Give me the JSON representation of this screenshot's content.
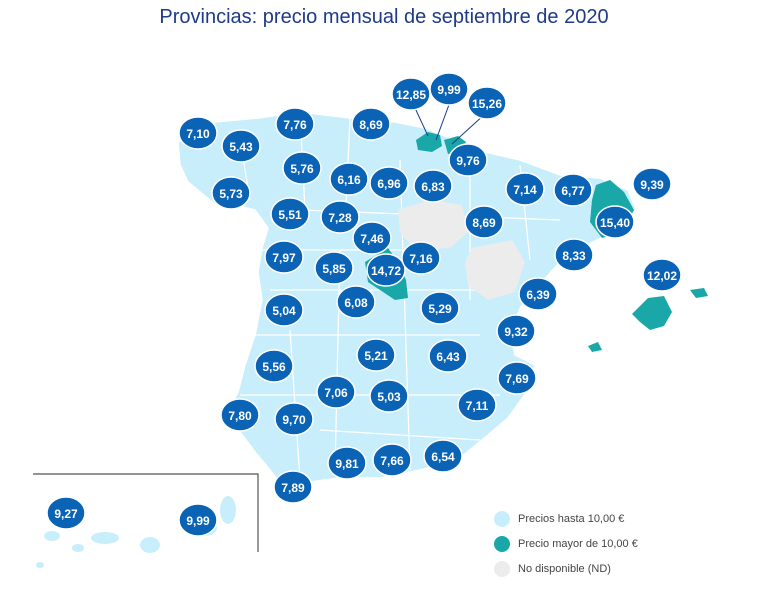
{
  "title": "Provincias: precio mensual de septiembre de 2020",
  "colors": {
    "low": "#c9eefb",
    "high": "#1aa7a7",
    "nd": "#ececec",
    "bubble": "#0a63b5",
    "title": "#1e3a8a"
  },
  "legend": [
    {
      "label": "Precios hasta 10,00 €",
      "color": "#c9eefb"
    },
    {
      "label": "Precio mayor de 10,00 €",
      "color": "#1aa7a7"
    },
    {
      "label": "No disponible (ND)",
      "color": "#ececec"
    }
  ],
  "prices": [
    "7,10",
    "5,43",
    "7,76",
    "8,69",
    "12,85",
    "9,99",
    "15,26",
    "5,73",
    "5,76",
    "6,16",
    "6,96",
    "6,83",
    "9,76",
    "7,14",
    "6,77",
    "9,39",
    "15,40",
    "5,51",
    "7,28",
    "7,46",
    "8,69",
    "7,97",
    "5,85",
    "14,72",
    "7,16",
    "8,33",
    "12,02",
    "5,04",
    "6,08",
    "5,29",
    "6,39",
    "9,32",
    "5,56",
    "5,21",
    "6,43",
    "7,69",
    "7,06",
    "5,03",
    "7,80",
    "9,70",
    "7,11",
    "9,81",
    "7,66",
    "6,54",
    "7,89",
    "9,27",
    "9,99"
  ]
}
